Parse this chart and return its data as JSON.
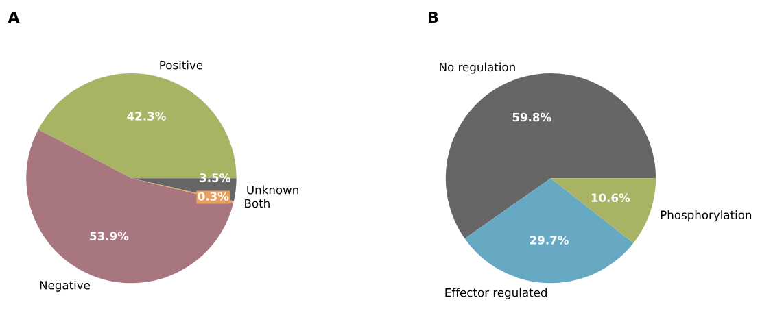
{
  "chart_data": [
    {
      "type": "pie",
      "title": "A",
      "categories": [
        "Positive",
        "Negative",
        "Both",
        "Unknown"
      ],
      "values": [
        42.3,
        53.9,
        0.3,
        3.5
      ],
      "value_labels": [
        "42.3%",
        "53.9%",
        "0.3%",
        "3.5%"
      ],
      "colors": [
        "#a8b464",
        "#a8767e",
        "#e8a060",
        "#666666"
      ]
    },
    {
      "type": "pie",
      "title": "B",
      "categories": [
        "No regulation",
        "Effector regulated",
        "Phosphorylation"
      ],
      "values": [
        59.8,
        29.7,
        10.6
      ],
      "value_labels": [
        "59.8%",
        "29.7%",
        "10.6%"
      ],
      "colors": [
        "#666666",
        "#67a9c3",
        "#a8b464"
      ]
    }
  ]
}
